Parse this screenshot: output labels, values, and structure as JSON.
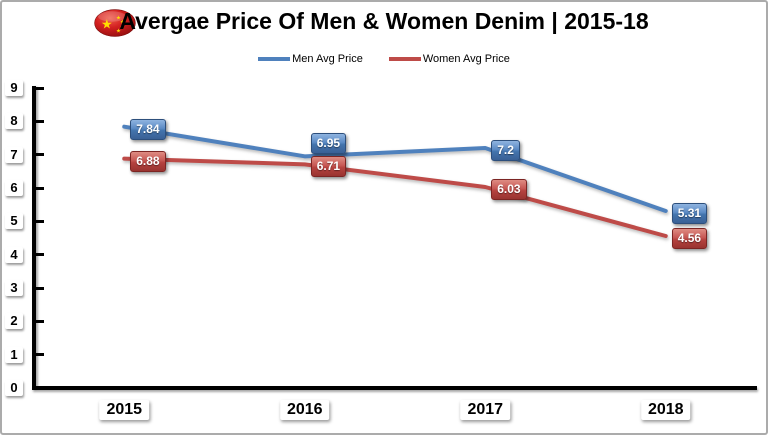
{
  "header": {
    "title": "Avergae Price Of Men & Women Denim | 2015-18",
    "flag": "china-flag"
  },
  "legend": {
    "items": [
      {
        "label": "Men Avg Price",
        "color": "#4F81BD"
      },
      {
        "label": "Women Avg Price",
        "color": "#BE4B48"
      }
    ]
  },
  "chart_data": {
    "type": "line",
    "title": "Avergae Price Of Men & Women Denim | 2015-18",
    "categories": [
      "2015",
      "2016",
      "2017",
      "2018"
    ],
    "series": [
      {
        "name": "Men Avg Price",
        "color": "#4F81BD",
        "values": [
          7.84,
          6.95,
          7.2,
          5.31
        ],
        "data_labels": [
          "7.84",
          "6.95",
          "7.2",
          "5.31"
        ],
        "label_dy": [
          0,
          -15,
          0,
          0
        ]
      },
      {
        "name": "Women Avg Price",
        "color": "#BE4B48",
        "values": [
          6.88,
          6.71,
          6.03,
          4.56
        ],
        "data_labels": [
          "6.88",
          "6.71",
          "6.03",
          "4.56"
        ],
        "label_dy": [
          0,
          0,
          0,
          0
        ]
      }
    ],
    "xlabel": "",
    "ylabel": "",
    "ylim": [
      0,
      9
    ],
    "ytick_step": 1,
    "grid": false,
    "legend_position": "top"
  }
}
